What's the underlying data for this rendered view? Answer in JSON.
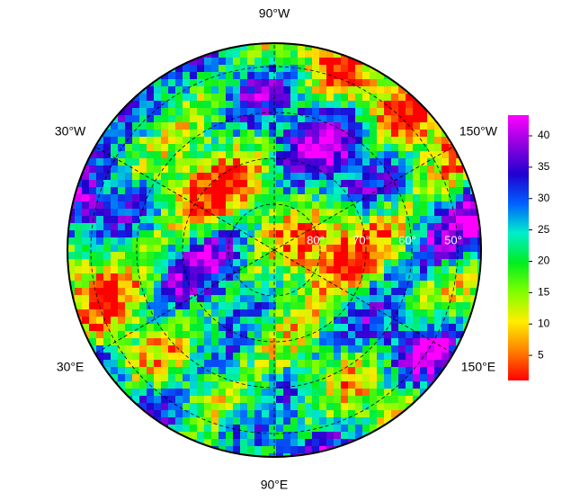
{
  "map": {
    "longitude_labels": [
      {
        "value": -90,
        "label": "90°W"
      },
      {
        "value": -30,
        "label": "30°W"
      },
      {
        "value": -150,
        "label": "150°W"
      },
      {
        "value": 30,
        "label": "30°E"
      },
      {
        "value": 150,
        "label": "150°E"
      },
      {
        "value": 90,
        "label": "90°E"
      }
    ],
    "latitude_labels": [
      {
        "value": 80,
        "label": "80°"
      },
      {
        "value": 70,
        "label": "70°"
      },
      {
        "value": 60,
        "label": "60°"
      },
      {
        "value": 50,
        "label": "50°"
      }
    ],
    "colorbar": {
      "range": [
        1,
        43.3
      ],
      "ticks": [
        5,
        10,
        15,
        20,
        25,
        30,
        35,
        40
      ],
      "colormap": [
        "#ff0000",
        "#ff8000",
        "#ffee00",
        "#80ff00",
        "#00ee20",
        "#00eecc",
        "#0060ff",
        "#2000d0",
        "#9000e0",
        "#ff00ff"
      ]
    }
  }
}
